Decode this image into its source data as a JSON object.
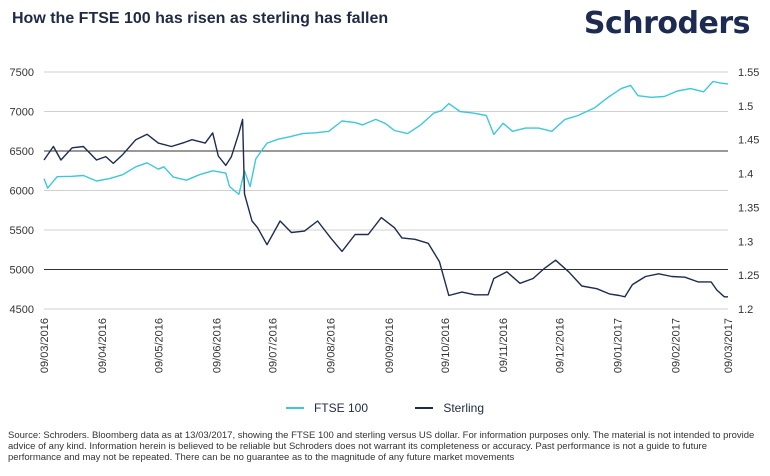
{
  "header": {
    "title": "How the FTSE 100 has risen as sterling has fallen",
    "logo_text": "Schroders"
  },
  "footnote": "Source: Schroders. Bloomberg data as at 13/03/2017, showing the FTSE 100 and sterling versus US dollar. For information purposes only. The material is not intended to provide advice of any kind. Information herein is believed to be reliable but Schroders does not warrant its completeness or accuracy. Past performance is not a guide to future performance and may not be repeated. There can be no guarantee as to the magnitude of any future market movements",
  "colors": {
    "ftse": "#3cc8dc",
    "sterling": "#1c2b4f",
    "grid": "#d0d0d0",
    "refline": "#333333"
  },
  "chart_data": {
    "type": "line",
    "title": "How the FTSE 100 has risen as sterling has fallen",
    "x_ticks": [
      "09/03/2016",
      "09/04/2016",
      "09/05/2016",
      "09/06/2016",
      "09/07/2016",
      "09/08/2016",
      "09/09/2016",
      "09/10/2016",
      "09/11/2016",
      "09/12/2016",
      "09/01/2017",
      "09/02/2017",
      "09/03/2017"
    ],
    "xlim": [
      "2016-03-09",
      "2017-03-09"
    ],
    "y_left": {
      "ticks": [
        4500,
        5000,
        5500,
        6000,
        6500,
        7000,
        7500
      ],
      "lim": [
        4500,
        7500
      ]
    },
    "y_right": {
      "ticks": [
        "1.2",
        "1.25",
        "1.3",
        "1.35",
        "1.4",
        "1.45",
        "1.5",
        "1.55"
      ],
      "lim": [
        1.2,
        1.55
      ]
    },
    "grid": true,
    "legend_position": "bottom",
    "series": [
      {
        "name": "FTSE 100",
        "axis": "left",
        "points": [
          [
            "2016-03-09",
            6150
          ],
          [
            "2016-03-11",
            6030
          ],
          [
            "2016-03-16",
            6175
          ],
          [
            "2016-03-24",
            6180
          ],
          [
            "2016-03-30",
            6190
          ],
          [
            "2016-04-06",
            6120
          ],
          [
            "2016-04-13",
            6150
          ],
          [
            "2016-04-20",
            6200
          ],
          [
            "2016-04-27",
            6300
          ],
          [
            "2016-05-03",
            6350
          ],
          [
            "2016-05-09",
            6270
          ],
          [
            "2016-05-12",
            6300
          ],
          [
            "2016-05-17",
            6170
          ],
          [
            "2016-05-24",
            6130
          ],
          [
            "2016-05-31",
            6200
          ],
          [
            "2016-06-07",
            6250
          ],
          [
            "2016-06-14",
            6220
          ],
          [
            "2016-06-16",
            6050
          ],
          [
            "2016-06-21",
            5950
          ],
          [
            "2016-06-24",
            6250
          ],
          [
            "2016-06-27",
            6050
          ],
          [
            "2016-06-30",
            6400
          ],
          [
            "2016-07-06",
            6600
          ],
          [
            "2016-07-12",
            6650
          ],
          [
            "2016-07-18",
            6680
          ],
          [
            "2016-07-25",
            6720
          ],
          [
            "2016-08-01",
            6730
          ],
          [
            "2016-08-08",
            6750
          ],
          [
            "2016-08-15",
            6880
          ],
          [
            "2016-08-22",
            6860
          ],
          [
            "2016-08-26",
            6830
          ],
          [
            "2016-09-02",
            6900
          ],
          [
            "2016-09-07",
            6850
          ],
          [
            "2016-09-12",
            6760
          ],
          [
            "2016-09-19",
            6720
          ],
          [
            "2016-09-26",
            6830
          ],
          [
            "2016-10-03",
            6980
          ],
          [
            "2016-10-07",
            7010
          ],
          [
            "2016-10-11",
            7100
          ],
          [
            "2016-10-17",
            7000
          ],
          [
            "2016-10-24",
            6980
          ],
          [
            "2016-10-31",
            6950
          ],
          [
            "2016-11-04",
            6710
          ],
          [
            "2016-11-09",
            6850
          ],
          [
            "2016-11-14",
            6750
          ],
          [
            "2016-11-21",
            6790
          ],
          [
            "2016-11-28",
            6790
          ],
          [
            "2016-12-05",
            6750
          ],
          [
            "2016-12-12",
            6900
          ],
          [
            "2016-12-19",
            6950
          ],
          [
            "2016-12-28",
            7050
          ],
          [
            "2017-01-04",
            7180
          ],
          [
            "2017-01-11",
            7290
          ],
          [
            "2017-01-16",
            7330
          ],
          [
            "2017-01-20",
            7200
          ],
          [
            "2017-01-27",
            7180
          ],
          [
            "2017-02-03",
            7190
          ],
          [
            "2017-02-10",
            7260
          ],
          [
            "2017-02-17",
            7290
          ],
          [
            "2017-02-24",
            7250
          ],
          [
            "2017-03-01",
            7380
          ],
          [
            "2017-03-05",
            7360
          ],
          [
            "2017-03-09",
            7350
          ]
        ]
      },
      {
        "name": "Sterling",
        "axis": "right",
        "points": [
          [
            "2016-03-09",
            1.42
          ],
          [
            "2016-03-14",
            1.44
          ],
          [
            "2016-03-18",
            1.42
          ],
          [
            "2016-03-24",
            1.438
          ],
          [
            "2016-03-30",
            1.44
          ],
          [
            "2016-04-06",
            1.42
          ],
          [
            "2016-04-11",
            1.425
          ],
          [
            "2016-04-15",
            1.415
          ],
          [
            "2016-04-20",
            1.428
          ],
          [
            "2016-04-27",
            1.45
          ],
          [
            "2016-05-03",
            1.458
          ],
          [
            "2016-05-09",
            1.445
          ],
          [
            "2016-05-16",
            1.44
          ],
          [
            "2016-05-23",
            1.446
          ],
          [
            "2016-05-27",
            1.45
          ],
          [
            "2016-06-03",
            1.445
          ],
          [
            "2016-06-07",
            1.46
          ],
          [
            "2016-06-10",
            1.426
          ],
          [
            "2016-06-14",
            1.412
          ],
          [
            "2016-06-17",
            1.425
          ],
          [
            "2016-06-21",
            1.46
          ],
          [
            "2016-06-23",
            1.48
          ],
          [
            "2016-06-24",
            1.37
          ],
          [
            "2016-06-28",
            1.33
          ],
          [
            "2016-07-01",
            1.32
          ],
          [
            "2016-07-06",
            1.295
          ],
          [
            "2016-07-13",
            1.33
          ],
          [
            "2016-07-19",
            1.313
          ],
          [
            "2016-07-26",
            1.315
          ],
          [
            "2016-08-02",
            1.33
          ],
          [
            "2016-08-09",
            1.305
          ],
          [
            "2016-08-15",
            1.285
          ],
          [
            "2016-08-22",
            1.31
          ],
          [
            "2016-08-29",
            1.31
          ],
          [
            "2016-09-05",
            1.335
          ],
          [
            "2016-09-12",
            1.32
          ],
          [
            "2016-09-16",
            1.305
          ],
          [
            "2016-09-23",
            1.303
          ],
          [
            "2016-09-30",
            1.297
          ],
          [
            "2016-10-06",
            1.27
          ],
          [
            "2016-10-11",
            1.22
          ],
          [
            "2016-10-18",
            1.225
          ],
          [
            "2016-10-25",
            1.221
          ],
          [
            "2016-11-01",
            1.221
          ],
          [
            "2016-11-04",
            1.245
          ],
          [
            "2016-11-11",
            1.255
          ],
          [
            "2016-11-18",
            1.238
          ],
          [
            "2016-11-25",
            1.245
          ],
          [
            "2016-12-01",
            1.26
          ],
          [
            "2016-12-07",
            1.272
          ],
          [
            "2016-12-14",
            1.255
          ],
          [
            "2016-12-21",
            1.234
          ],
          [
            "2016-12-29",
            1.23
          ],
          [
            "2017-01-05",
            1.222
          ],
          [
            "2017-01-10",
            1.22
          ],
          [
            "2017-01-13",
            1.218
          ],
          [
            "2017-01-17",
            1.236
          ],
          [
            "2017-01-24",
            1.248
          ],
          [
            "2017-01-31",
            1.252
          ],
          [
            "2017-02-07",
            1.248
          ],
          [
            "2017-02-14",
            1.247
          ],
          [
            "2017-02-21",
            1.24
          ],
          [
            "2017-02-28",
            1.24
          ],
          [
            "2017-03-03",
            1.228
          ],
          [
            "2017-03-07",
            1.218
          ],
          [
            "2017-03-09",
            1.218
          ]
        ]
      }
    ]
  }
}
